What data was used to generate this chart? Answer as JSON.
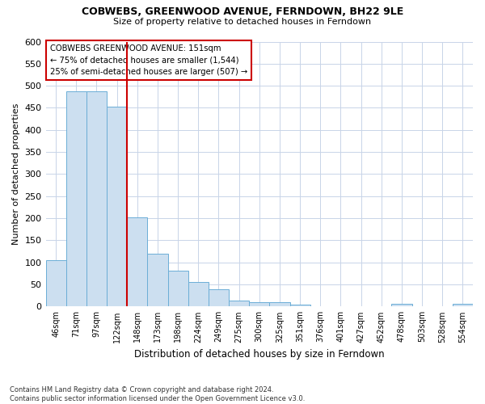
{
  "title1": "COBWEBS, GREENWOOD AVENUE, FERNDOWN, BH22 9LE",
  "title2": "Size of property relative to detached houses in Ferndown",
  "xlabel": "Distribution of detached houses by size in Ferndown",
  "ylabel": "Number of detached properties",
  "categories": [
    "46sqm",
    "71sqm",
    "97sqm",
    "122sqm",
    "148sqm",
    "173sqm",
    "198sqm",
    "224sqm",
    "249sqm",
    "275sqm",
    "300sqm",
    "325sqm",
    "351sqm",
    "376sqm",
    "401sqm",
    "427sqm",
    "452sqm",
    "478sqm",
    "503sqm",
    "528sqm",
    "554sqm"
  ],
  "values": [
    105,
    487,
    487,
    453,
    201,
    120,
    82,
    56,
    39,
    14,
    9,
    10,
    4,
    1,
    1,
    1,
    0,
    6,
    0,
    0,
    6
  ],
  "bar_color": "#ccdff0",
  "bar_edge_color": "#6baed6",
  "vline_index": 3.5,
  "annotation_line1": "COBWEBS GREENWOOD AVENUE: 151sqm",
  "annotation_line2": "← 75% of detached houses are smaller (1,544)",
  "annotation_line3": "25% of semi-detached houses are larger (507) →",
  "annotation_box_color": "#ffffff",
  "annotation_box_edge_color": "#cc0000",
  "vline_color": "#cc0000",
  "ylim": [
    0,
    600
  ],
  "yticks": [
    0,
    50,
    100,
    150,
    200,
    250,
    300,
    350,
    400,
    450,
    500,
    550,
    600
  ],
  "footnote": "Contains HM Land Registry data © Crown copyright and database right 2024.\nContains public sector information licensed under the Open Government Licence v3.0.",
  "background_color": "#ffffff",
  "grid_color": "#c8d4e8"
}
